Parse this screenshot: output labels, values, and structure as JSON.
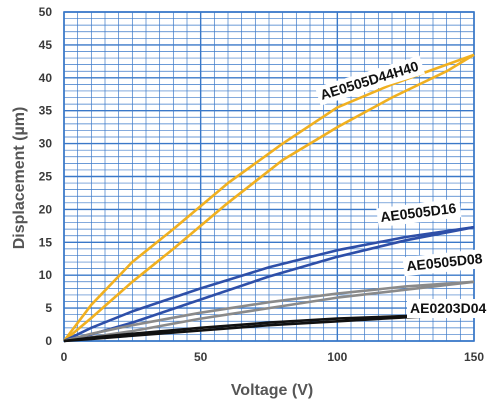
{
  "chart_data": {
    "type": "line",
    "xlabel": "Voltage (V)",
    "ylabel": "Displacement (µm)",
    "xlim": [
      0,
      150
    ],
    "ylim": [
      0,
      50
    ],
    "x_ticks": [
      "0",
      "50",
      "100",
      "150"
    ],
    "y_ticks": [
      "0",
      "5",
      "10",
      "15",
      "20",
      "25",
      "30",
      "35",
      "40",
      "45",
      "50"
    ],
    "grid": true,
    "grid_color": "#3a78c8",
    "series": [
      {
        "name": "AE0505D44H40",
        "color": "#f0b020",
        "x": [
          0,
          10,
          25,
          40,
          60,
          80,
          100,
          120,
          140,
          150
        ],
        "y_up": [
          0,
          3.5,
          9.0,
          14.0,
          21.0,
          27.5,
          32.5,
          37.0,
          41.0,
          43.5
        ],
        "y_down": [
          0,
          5.5,
          12.0,
          17.0,
          24.0,
          30.0,
          35.5,
          39.0,
          42.0,
          43.5
        ]
      },
      {
        "name": "AE0505D16",
        "color": "#2e4fa8",
        "x": [
          0,
          10,
          25,
          50,
          75,
          100,
          125,
          150
        ],
        "y_up": [
          0,
          1.0,
          2.8,
          6.3,
          9.8,
          12.8,
          15.3,
          17.3
        ],
        "y_down": [
          0,
          2.0,
          4.5,
          8.0,
          11.2,
          13.8,
          15.8,
          17.3
        ]
      },
      {
        "name": "AE0505D08",
        "color": "#8a8a8a",
        "x": [
          0,
          10,
          25,
          50,
          75,
          100,
          125,
          150
        ],
        "y_up": [
          0,
          0.6,
          1.5,
          3.4,
          5.0,
          6.6,
          7.8,
          9.0
        ],
        "y_down": [
          0,
          1.1,
          2.4,
          4.3,
          5.9,
          7.2,
          8.3,
          9.0
        ]
      },
      {
        "name": "AE0203D04",
        "color": "#111111",
        "x": [
          0,
          10,
          25,
          50,
          75,
          100,
          125,
          150
        ],
        "y_up": [
          0,
          0.3,
          0.8,
          1.6,
          2.4,
          3.0,
          3.6,
          4.0
        ],
        "y_down": [
          0,
          0.5,
          1.1,
          2.0,
          2.8,
          3.4,
          3.8,
          4.0
        ]
      }
    ]
  }
}
